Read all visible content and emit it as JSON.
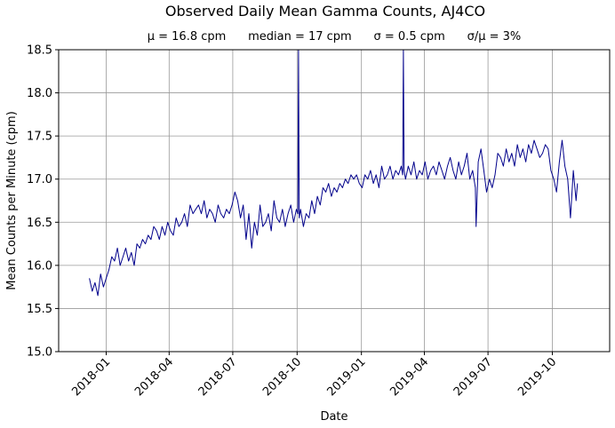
{
  "chart_data": {
    "type": "line",
    "title": "Observed Daily Mean Gamma Counts, AJ4CO",
    "subtitle": "μ = 16.8 cpm      median = 17 cpm      σ = 0.5 cpm      σ/μ = 3%",
    "xlabel": "Date",
    "ylabel": "Mean Counts per Minute (cpm)",
    "ylim": [
      15.0,
      18.5
    ],
    "yticks": [
      "15.0",
      "15.5",
      "16.0",
      "16.5",
      "17.0",
      "17.5",
      "18.0",
      "18.5"
    ],
    "xlim": [
      "2017-10-25",
      "2019-12-22"
    ],
    "xticks": [
      "2018-01",
      "2018-04",
      "2018-07",
      "2018-10",
      "2019-01",
      "2019-04",
      "2019-07",
      "2019-10"
    ],
    "grid": true,
    "line_color": "#00008b",
    "series": [
      {
        "x": [
          "2017-12-08",
          "2017-12-12",
          "2017-12-16",
          "2017-12-20",
          "2017-12-24",
          "2017-12-28",
          "2018-01-01",
          "2018-01-05",
          "2018-01-09",
          "2018-01-13",
          "2018-01-17",
          "2018-01-21",
          "2018-01-25",
          "2018-01-29",
          "2018-02-02",
          "2018-02-06",
          "2018-02-10",
          "2018-02-14",
          "2018-02-18",
          "2018-02-22",
          "2018-02-26",
          "2018-03-02",
          "2018-03-06",
          "2018-03-10",
          "2018-03-14",
          "2018-03-18",
          "2018-03-22",
          "2018-03-26",
          "2018-03-30",
          "2018-04-03",
          "2018-04-07",
          "2018-04-11",
          "2018-04-15",
          "2018-04-19",
          "2018-04-23",
          "2018-04-27",
          "2018-05-01",
          "2018-05-05",
          "2018-05-09",
          "2018-05-13",
          "2018-05-17",
          "2018-05-21",
          "2018-05-25",
          "2018-05-29",
          "2018-06-02",
          "2018-06-06",
          "2018-06-10",
          "2018-06-14",
          "2018-06-18",
          "2018-06-22",
          "2018-06-26",
          "2018-06-30",
          "2018-07-04",
          "2018-07-08",
          "2018-07-12",
          "2018-07-16",
          "2018-07-20",
          "2018-07-24",
          "2018-07-28",
          "2018-08-01",
          "2018-08-05",
          "2018-08-09",
          "2018-08-13",
          "2018-08-17",
          "2018-08-21",
          "2018-08-25",
          "2018-08-29",
          "2018-09-02",
          "2018-09-06",
          "2018-09-10",
          "2018-09-14",
          "2018-09-18",
          "2018-09-22",
          "2018-09-26",
          "2018-09-30",
          "2018-10-02",
          "2018-10-03",
          "2018-10-04",
          "2018-10-06",
          "2018-10-10",
          "2018-10-14",
          "2018-10-18",
          "2018-10-22",
          "2018-10-26",
          "2018-10-30",
          "2018-11-03",
          "2018-11-07",
          "2018-11-11",
          "2018-11-15",
          "2018-11-19",
          "2018-11-23",
          "2018-11-27",
          "2018-12-01",
          "2018-12-05",
          "2018-12-09",
          "2018-12-13",
          "2018-12-17",
          "2018-12-21",
          "2018-12-25",
          "2018-12-29",
          "2019-01-02",
          "2019-01-06",
          "2019-01-10",
          "2019-01-14",
          "2019-01-18",
          "2019-01-22",
          "2019-01-26",
          "2019-01-30",
          "2019-02-03",
          "2019-02-07",
          "2019-02-11",
          "2019-02-15",
          "2019-02-19",
          "2019-02-23",
          "2019-02-27",
          "2019-03-01",
          "2019-03-02",
          "2019-03-03",
          "2019-03-05",
          "2019-03-09",
          "2019-03-13",
          "2019-03-17",
          "2019-03-21",
          "2019-03-25",
          "2019-03-29",
          "2019-04-02",
          "2019-04-06",
          "2019-04-10",
          "2019-04-14",
          "2019-04-18",
          "2019-04-22",
          "2019-04-26",
          "2019-04-30",
          "2019-05-04",
          "2019-05-08",
          "2019-05-12",
          "2019-05-16",
          "2019-05-20",
          "2019-05-24",
          "2019-05-28",
          "2019-06-01",
          "2019-06-05",
          "2019-06-09",
          "2019-06-13",
          "2019-06-14",
          "2019-06-17",
          "2019-06-21",
          "2019-06-25",
          "2019-06-29",
          "2019-07-03",
          "2019-07-07",
          "2019-07-11",
          "2019-07-15",
          "2019-07-19",
          "2019-07-23",
          "2019-07-27",
          "2019-07-31",
          "2019-08-04",
          "2019-08-08",
          "2019-08-12",
          "2019-08-16",
          "2019-08-20",
          "2019-08-24",
          "2019-08-28",
          "2019-09-01",
          "2019-09-05",
          "2019-09-09",
          "2019-09-13",
          "2019-09-17",
          "2019-09-21",
          "2019-09-25",
          "2019-09-29",
          "2019-10-03",
          "2019-10-07",
          "2019-10-11",
          "2019-10-15",
          "2019-10-19",
          "2019-10-23",
          "2019-10-27",
          "2019-10-31",
          "2019-11-04",
          "2019-11-06"
        ],
        "y": [
          15.85,
          15.7,
          15.8,
          15.65,
          15.9,
          15.75,
          15.85,
          15.95,
          16.1,
          16.05,
          16.2,
          16.0,
          16.1,
          16.2,
          16.05,
          16.15,
          16.0,
          16.25,
          16.2,
          16.3,
          16.25,
          16.35,
          16.3,
          16.45,
          16.4,
          16.3,
          16.45,
          16.35,
          16.5,
          16.4,
          16.35,
          16.55,
          16.45,
          16.5,
          16.6,
          16.45,
          16.7,
          16.6,
          16.65,
          16.7,
          16.6,
          16.75,
          16.55,
          16.65,
          16.6,
          16.5,
          16.7,
          16.6,
          16.55,
          16.65,
          16.6,
          16.7,
          16.85,
          16.75,
          16.55,
          16.7,
          16.3,
          16.6,
          16.2,
          16.5,
          16.35,
          16.7,
          16.45,
          16.5,
          16.6,
          16.4,
          16.75,
          16.55,
          16.5,
          16.65,
          16.45,
          16.6,
          16.7,
          16.5,
          16.65,
          16.6,
          18.5,
          16.55,
          16.65,
          16.45,
          16.6,
          16.55,
          16.75,
          16.6,
          16.8,
          16.7,
          16.9,
          16.85,
          16.95,
          16.8,
          16.9,
          16.85,
          16.95,
          16.9,
          17.0,
          16.95,
          17.05,
          17.0,
          17.05,
          16.95,
          16.9,
          17.05,
          17.0,
          17.1,
          16.95,
          17.05,
          16.9,
          17.15,
          17.0,
          17.05,
          17.15,
          17.0,
          17.1,
          17.05,
          17.15,
          17.05,
          18.5,
          17.1,
          17.0,
          17.15,
          17.05,
          17.2,
          17.0,
          17.1,
          17.05,
          17.2,
          17.0,
          17.1,
          17.15,
          17.05,
          17.2,
          17.1,
          17.0,
          17.15,
          17.25,
          17.1,
          17.0,
          17.2,
          17.05,
          17.15,
          17.3,
          17.0,
          17.1,
          16.9,
          16.45,
          17.2,
          17.35,
          17.1,
          16.85,
          17.0,
          16.9,
          17.05,
          17.3,
          17.25,
          17.15,
          17.35,
          17.2,
          17.3,
          17.15,
          17.4,
          17.25,
          17.35,
          17.2,
          17.4,
          17.3,
          17.45,
          17.35,
          17.25,
          17.3,
          17.4,
          17.35,
          17.1,
          17.0,
          16.85,
          17.2,
          17.45,
          17.15,
          17.0,
          16.55,
          17.1,
          16.75,
          16.95
        ]
      }
    ]
  }
}
